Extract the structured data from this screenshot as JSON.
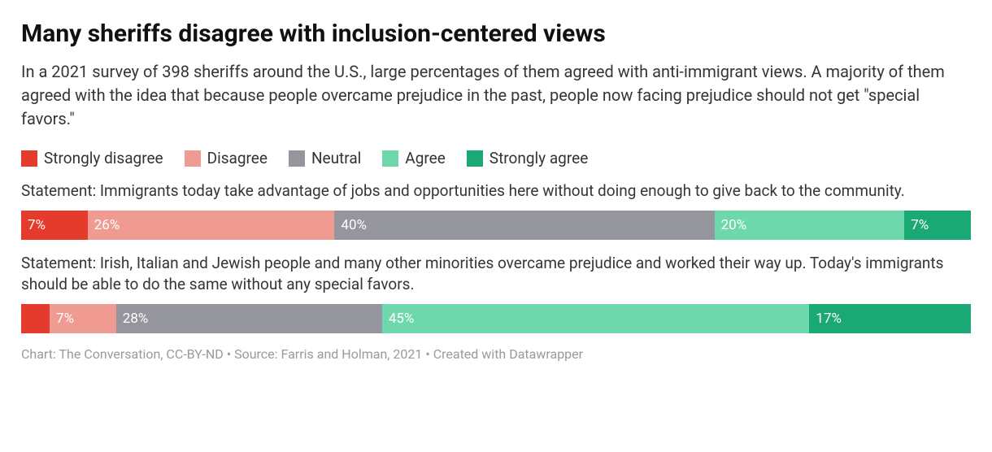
{
  "title": "Many sheriffs disagree with inclusion-centered views",
  "subtitle": "In a 2021 survey of 398 sheriffs around the U.S., large percentages of them agreed with anti-immigrant views. A majority of them agreed with the idea that because people overcame prejudice in the past, people now facing prejudice should not get \"special favors.\"",
  "legend": [
    {
      "label": "Strongly disagree",
      "color": "#e53b2c"
    },
    {
      "label": "Disagree",
      "color": "#f09b92"
    },
    {
      "label": "Neutral",
      "color": "#95959d"
    },
    {
      "label": "Agree",
      "color": "#6ed8ac"
    },
    {
      "label": "Strongly agree",
      "color": "#1aa874"
    }
  ],
  "label_color_light": "#ffffff",
  "statements": [
    {
      "text": "Statement: Immigrants today take advantage of jobs and opportunities here without doing enough to give back to the community.",
      "segments": [
        {
          "value": 7,
          "label": "7%",
          "color": "#e53b2c",
          "show": true
        },
        {
          "value": 26,
          "label": "26%",
          "color": "#f09b92",
          "show": true
        },
        {
          "value": 40,
          "label": "40%",
          "color": "#95959d",
          "show": true
        },
        {
          "value": 20,
          "label": "20%",
          "color": "#6ed8ac",
          "show": true
        },
        {
          "value": 7,
          "label": "7%",
          "color": "#1aa874",
          "show": true
        }
      ]
    },
    {
      "text": "Statement: Irish, Italian and Jewish people and many other minorities overcame prejudice and worked their way up. Today's immigrants should be able to do the same without any special favors.",
      "segments": [
        {
          "value": 3,
          "label": "",
          "color": "#e53b2c",
          "show": false
        },
        {
          "value": 7,
          "label": "7%",
          "color": "#f09b92",
          "show": true
        },
        {
          "value": 28,
          "label": "28%",
          "color": "#95959d",
          "show": true
        },
        {
          "value": 45,
          "label": "45%",
          "color": "#6ed8ac",
          "show": true
        },
        {
          "value": 17,
          "label": "17%",
          "color": "#1aa874",
          "show": true
        }
      ]
    }
  ],
  "footer": "Chart: The Conversation, CC-BY-ND • Source: Farris and Holman, 2021 • Created with Datawrapper"
}
